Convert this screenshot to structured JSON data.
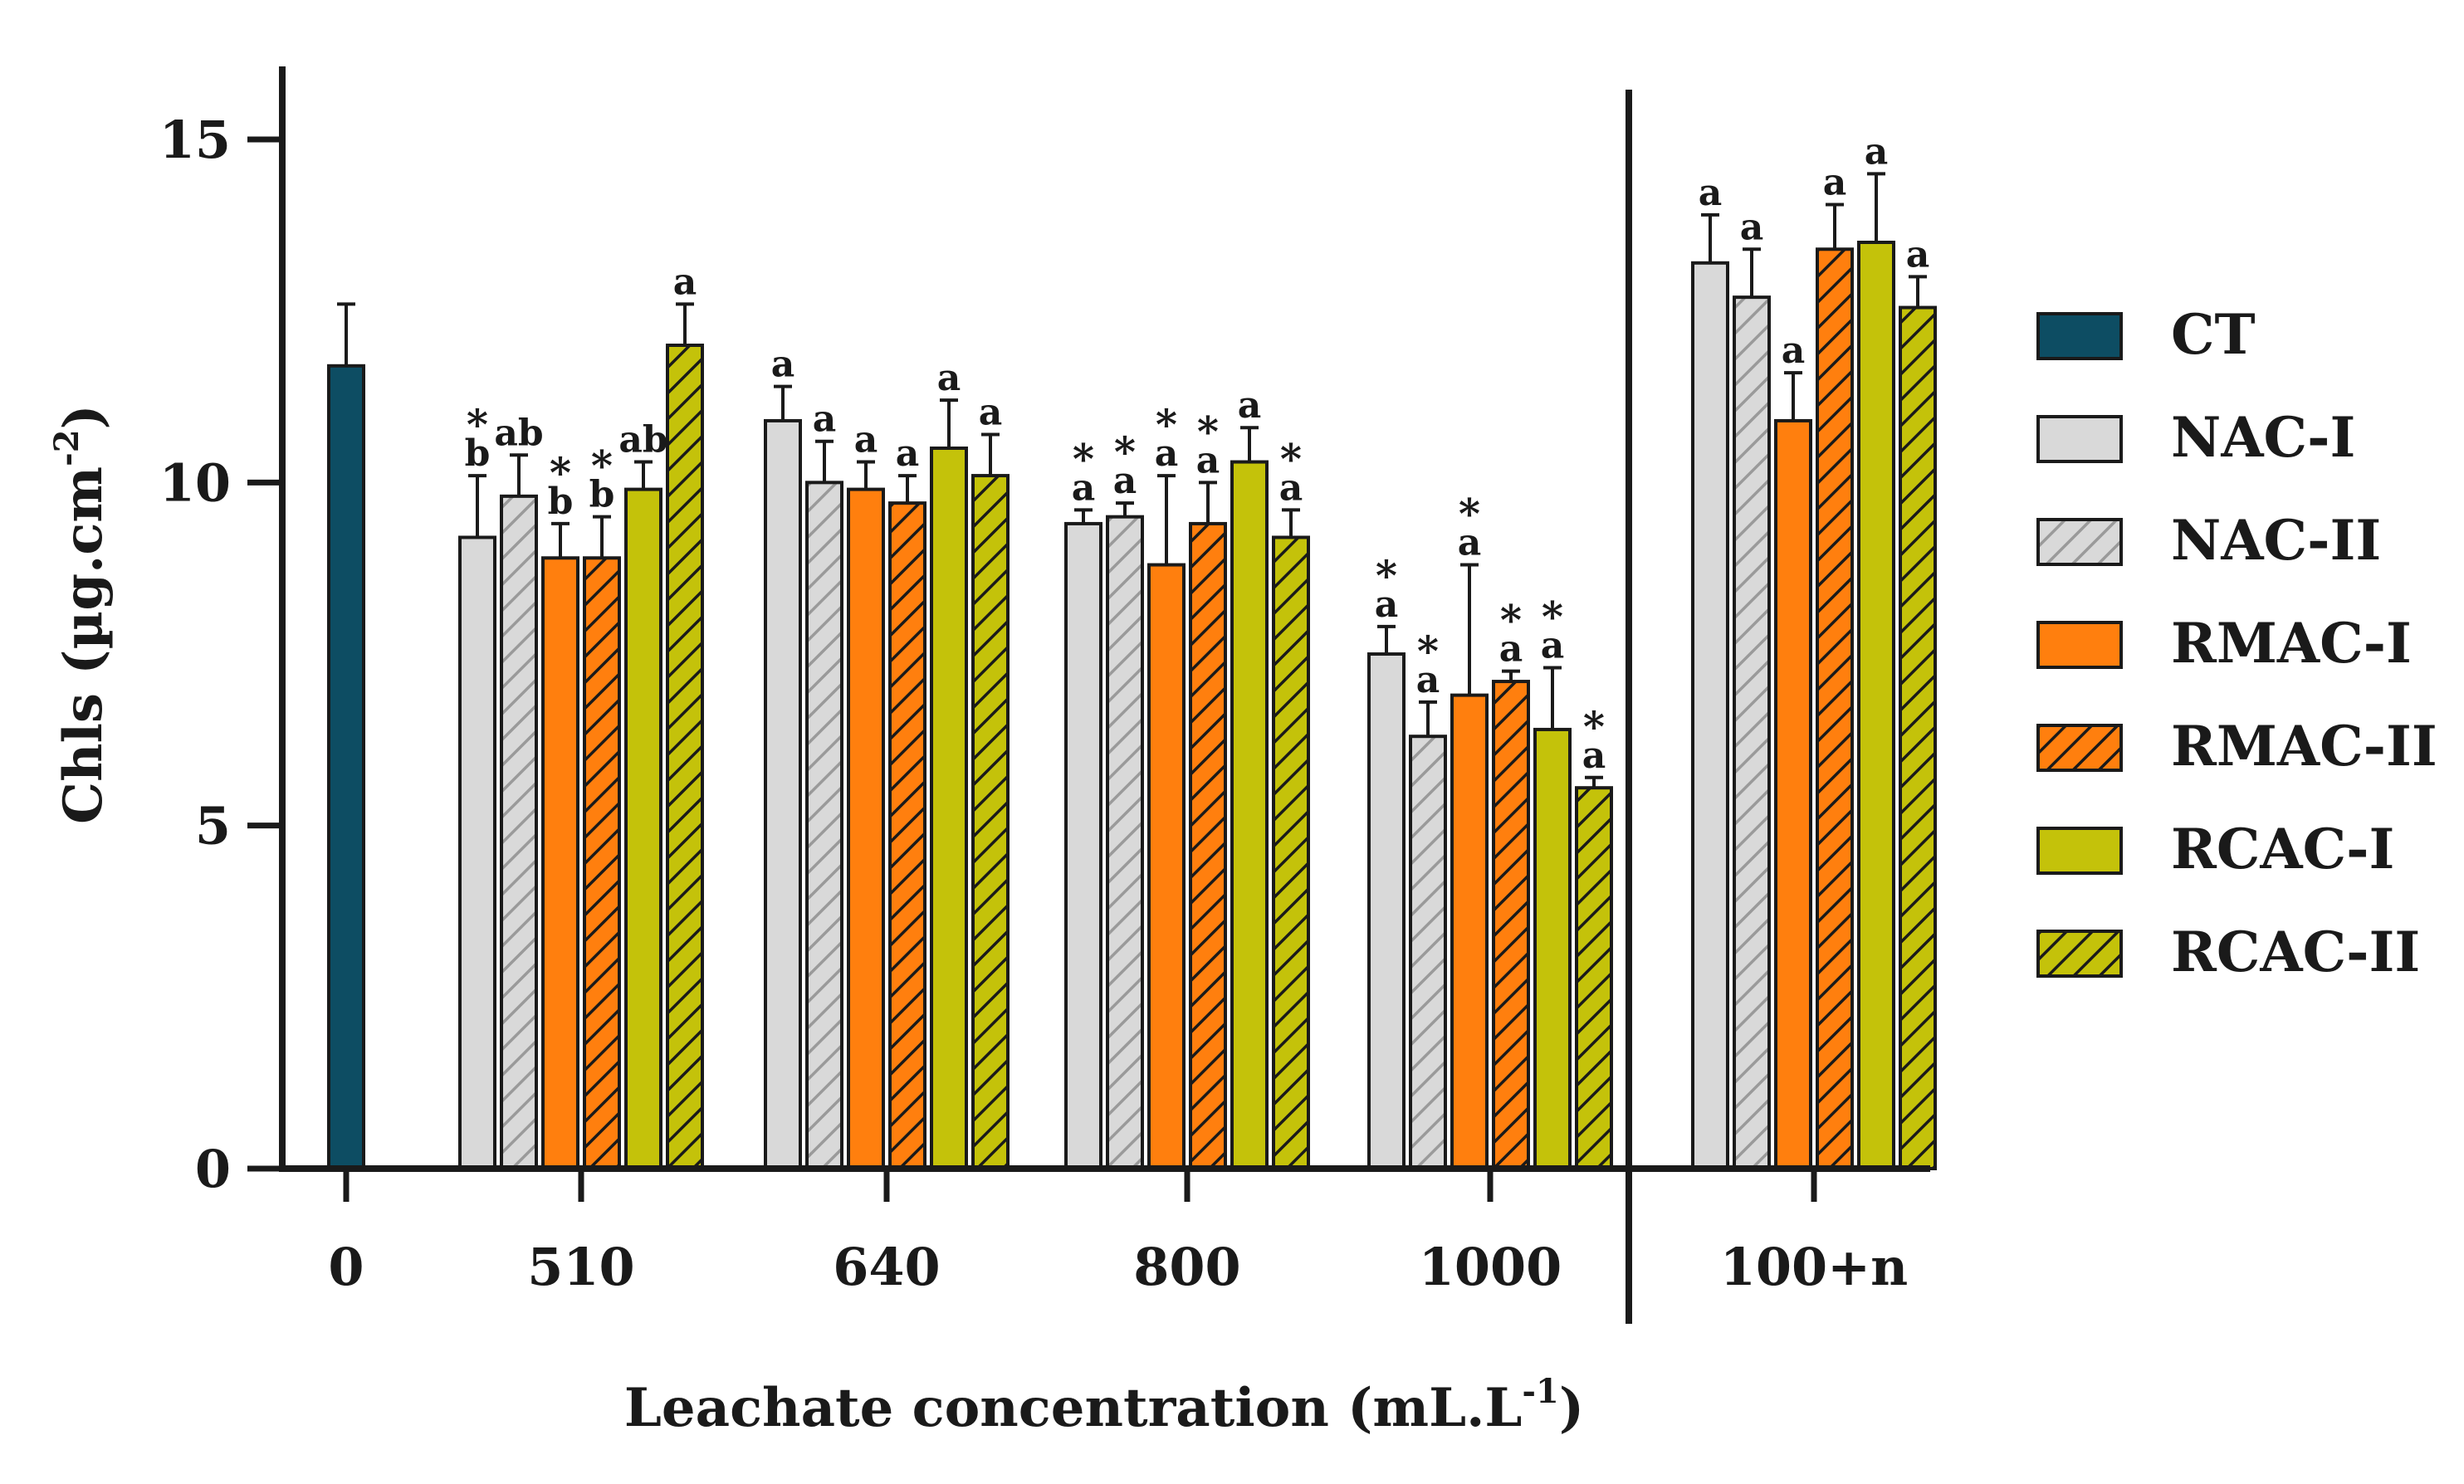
{
  "chart_data": {
    "type": "bar",
    "title": "",
    "xlabel": "Leachate concentration (mL.L",
    "xlabel_sup": "-1",
    "xlabel_end": ")",
    "ylabel": "Chls (µg.cm",
    "ylabel_sup": "-2",
    "ylabel_end": ")",
    "ylim": [
      0,
      16
    ],
    "yticks": [
      0,
      5,
      10,
      15
    ],
    "legend_position": "right",
    "groups": [
      {
        "label": "0",
        "bars": [
          {
            "series": "CT",
            "value": 11.7,
            "error": 0.9,
            "letter": "",
            "star": false
          }
        ]
      },
      {
        "label": "510",
        "bars": [
          {
            "series": "NAC-I",
            "value": 9.2,
            "error": 0.9,
            "letter": "b",
            "star": true
          },
          {
            "series": "NAC-II",
            "value": 9.8,
            "error": 0.6,
            "letter": "ab",
            "star": false
          },
          {
            "series": "RMAC-I",
            "value": 8.9,
            "error": 0.5,
            "letter": "b",
            "star": true
          },
          {
            "series": "RMAC-II",
            "value": 8.9,
            "error": 0.6,
            "letter": "b",
            "star": true
          },
          {
            "series": "RCAC-I",
            "value": 9.9,
            "error": 0.4,
            "letter": "ab",
            "star": false
          },
          {
            "series": "RCAC-II",
            "value": 12.0,
            "error": 0.6,
            "letter": "a",
            "star": false
          }
        ]
      },
      {
        "label": "640",
        "bars": [
          {
            "series": "NAC-I",
            "value": 10.9,
            "error": 0.5,
            "letter": "a",
            "star": false
          },
          {
            "series": "NAC-II",
            "value": 10.0,
            "error": 0.6,
            "letter": "a",
            "star": false
          },
          {
            "series": "RMAC-I",
            "value": 9.9,
            "error": 0.4,
            "letter": "a",
            "star": false
          },
          {
            "series": "RMAC-II",
            "value": 9.7,
            "error": 0.4,
            "letter": "a",
            "star": false
          },
          {
            "series": "RCAC-I",
            "value": 10.5,
            "error": 0.7,
            "letter": "a",
            "star": false
          },
          {
            "series": "RCAC-II",
            "value": 10.1,
            "error": 0.6,
            "letter": "a",
            "star": false
          }
        ]
      },
      {
        "label": "800",
        "bars": [
          {
            "series": "NAC-I",
            "value": 9.4,
            "error": 0.2,
            "letter": "a",
            "star": true
          },
          {
            "series": "NAC-II",
            "value": 9.5,
            "error": 0.2,
            "letter": "a",
            "star": true
          },
          {
            "series": "RMAC-I",
            "value": 8.8,
            "error": 1.3,
            "letter": "a",
            "star": true
          },
          {
            "series": "RMAC-II",
            "value": 9.4,
            "error": 0.6,
            "letter": "a",
            "star": true
          },
          {
            "series": "RCAC-I",
            "value": 10.3,
            "error": 0.5,
            "letter": "a",
            "star": false
          },
          {
            "series": "RCAC-II",
            "value": 9.2,
            "error": 0.4,
            "letter": "a",
            "star": true
          }
        ]
      },
      {
        "label": "1000",
        "bars": [
          {
            "series": "NAC-I",
            "value": 7.5,
            "error": 0.4,
            "letter": "a",
            "star": true
          },
          {
            "series": "NAC-II",
            "value": 6.3,
            "error": 0.5,
            "letter": "a",
            "star": true
          },
          {
            "series": "RMAC-I",
            "value": 6.9,
            "error": 1.9,
            "letter": "a",
            "star": true
          },
          {
            "series": "RMAC-II",
            "value": 7.1,
            "error": 0.15,
            "letter": "a",
            "star": true
          },
          {
            "series": "RCAC-I",
            "value": 6.4,
            "error": 0.9,
            "letter": "a",
            "star": true
          },
          {
            "series": "RCAC-II",
            "value": 5.55,
            "error": 0.15,
            "letter": "a",
            "star": true
          }
        ]
      },
      {
        "label": "100+n",
        "bars": [
          {
            "series": "NAC-I",
            "value": 13.2,
            "error": 0.7,
            "letter": "a",
            "star": false
          },
          {
            "series": "NAC-II",
            "value": 12.7,
            "error": 0.7,
            "letter": "a",
            "star": false
          },
          {
            "series": "RMAC-I",
            "value": 10.9,
            "error": 0.7,
            "letter": "a",
            "star": false
          },
          {
            "series": "RMAC-II",
            "value": 13.4,
            "error": 0.65,
            "letter": "a",
            "star": false
          },
          {
            "series": "RCAC-I",
            "value": 13.5,
            "error": 1.0,
            "letter": "a",
            "star": false
          },
          {
            "series": "RCAC-II",
            "value": 12.55,
            "error": 0.45,
            "letter": "a",
            "star": false
          }
        ]
      }
    ],
    "legend": [
      {
        "name": "CT",
        "color": "#0d4d63",
        "hatch": false
      },
      {
        "name": "NAC-I",
        "color": "#d9d9d9",
        "hatch": false
      },
      {
        "name": "NAC-II",
        "color": "#d9d9d9",
        "hatch": true
      },
      {
        "name": "RMAC-I",
        "color": "#ff7f0e",
        "hatch": false
      },
      {
        "name": "RMAC-II",
        "color": "#ff7f0e",
        "hatch": true
      },
      {
        "name": "RCAC-I",
        "color": "#c4c20a",
        "hatch": false
      },
      {
        "name": "RCAC-II",
        "color": "#c4c20a",
        "hatch": true
      }
    ],
    "star_symbol": "*"
  }
}
